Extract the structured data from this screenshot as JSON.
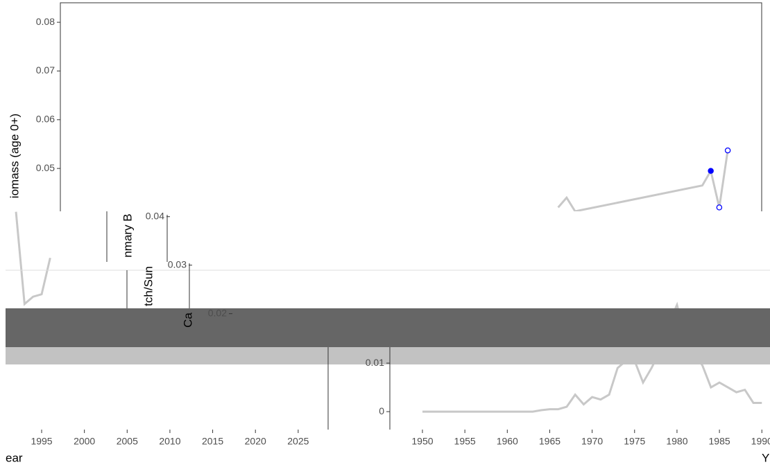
{
  "chart_data": [
    {
      "type": "scatter",
      "y_label": "iomass (age 0+)",
      "xlim": [
        1907.3,
        1990
      ],
      "ylim": [
        0.0412,
        0.084
      ],
      "yticks": [
        0.05,
        0.06,
        0.07,
        0.08
      ],
      "line": {
        "color": "#c8c8c8",
        "x": [
          1966,
          1967,
          1968,
          1983,
          1984,
          1985,
          1986
        ],
        "values": [
          0.042,
          0.044,
          0.0412,
          0.0465,
          0.0495,
          0.042,
          0.0537
        ]
      },
      "points": {
        "color": "#0000ff",
        "x": [
          1984,
          1985,
          1986
        ],
        "values": [
          0.0495,
          0.042,
          0.0537
        ],
        "filled": [
          true,
          false,
          false
        ]
      }
    },
    {
      "type": "line",
      "x_label": "Y",
      "xlim": [
        1946.16,
        1990.96
      ],
      "ylim": [
        -0.0037,
        0.042
      ],
      "xticks": [
        1950,
        1955,
        1960,
        1965,
        1970,
        1975,
        1980,
        1985,
        1990
      ],
      "yticks": [
        0,
        0.01
      ],
      "color": "#c8c8c8",
      "x": [
        1950,
        1951,
        1952,
        1953,
        1954,
        1955,
        1956,
        1957,
        1958,
        1959,
        1960,
        1961,
        1962,
        1963,
        1964,
        1965,
        1966,
        1967,
        1968,
        1969,
        1970,
        1971,
        1972,
        1973,
        1974,
        1975,
        1976,
        1977,
        1978,
        1979,
        1980,
        1981,
        1982,
        1983,
        1984,
        1985,
        1986,
        1987,
        1988,
        1989,
        1990
      ],
      "values": [
        0,
        0,
        0,
        0,
        0,
        0,
        0,
        0,
        0,
        0,
        0,
        0,
        0,
        0,
        0.0003,
        0.0005,
        0.0005,
        0.001,
        0.0035,
        0.0015,
        0.003,
        0.0025,
        0.0035,
        0.009,
        0.0105,
        0.0105,
        0.006,
        0.009,
        0.0125,
        0.018,
        0.022,
        0.015,
        0.012,
        0.0095,
        0.005,
        0.006,
        0.005,
        0.004,
        0.0045,
        0.0018,
        0.0018
      ]
    },
    {
      "type": "line",
      "x_label": "ear",
      "y_label_fragments": [
        "nmary B",
        "tch/Sun",
        "Ca"
      ],
      "xlim": [
        1990.78,
        2028.5
      ],
      "ylim": [
        -0.0039,
        0.0411
      ],
      "xticks": [
        1995,
        2000,
        2005,
        2010,
        2015,
        2020,
        2025
      ],
      "yticks": [
        0.04,
        0.03,
        0.02
      ],
      "color": "#c8c8c8",
      "x": [
        1992,
        1993,
        1994,
        1995,
        1996
      ],
      "values": [
        0.041,
        0.022,
        0.0235,
        0.024,
        0.0315
      ]
    }
  ]
}
